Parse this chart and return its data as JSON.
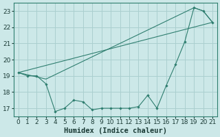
{
  "line1_x": [
    0,
    1,
    2,
    3,
    4,
    5,
    6,
    7,
    8,
    9,
    10,
    11,
    12,
    13,
    14,
    15,
    16,
    17,
    18,
    19,
    20,
    21
  ],
  "line1_y": [
    19.2,
    19.0,
    19.0,
    18.5,
    16.8,
    17.0,
    17.5,
    17.4,
    16.9,
    17.0,
    17.0,
    17.0,
    17.0,
    17.1,
    17.8,
    17.0,
    18.4,
    19.7,
    21.1,
    23.2,
    23.0,
    22.3
  ],
  "line2_x": [
    0,
    21
  ],
  "line2_y": [
    19.2,
    22.3
  ],
  "line3_x": [
    0,
    3,
    19,
    20,
    21
  ],
  "line3_y": [
    19.2,
    18.8,
    23.2,
    23.0,
    22.3
  ],
  "line_color": "#2d7d6e",
  "bg_color": "#cce8e8",
  "grid_color": "#aacfcf",
  "xlabel": "Humidex (Indice chaleur)",
  "xlim": [
    -0.5,
    21.5
  ],
  "ylim": [
    16.5,
    23.5
  ],
  "xticks": [
    0,
    1,
    2,
    3,
    4,
    5,
    6,
    7,
    8,
    9,
    10,
    11,
    12,
    13,
    14,
    15,
    16,
    17,
    18,
    19,
    20,
    21
  ],
  "yticks": [
    17,
    18,
    19,
    20,
    21,
    22,
    23
  ],
  "tick_fontsize": 6.5,
  "xlabel_fontsize": 7.5
}
